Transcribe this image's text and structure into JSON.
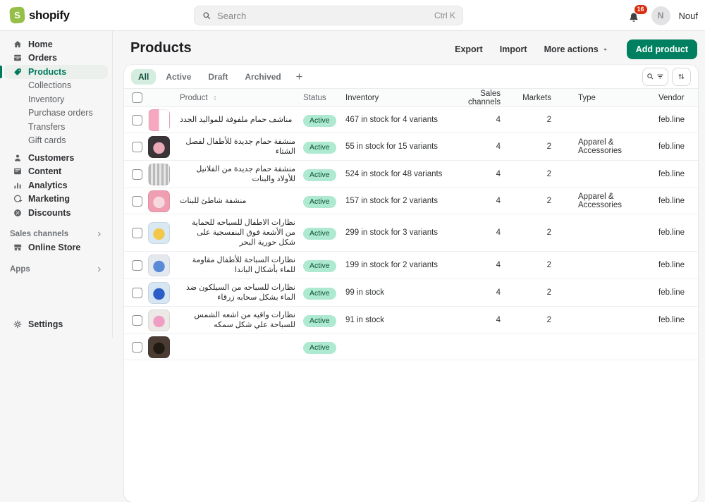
{
  "colors": {
    "brand_green": "#95bf47",
    "primary_button_green": "#008060",
    "active_nav_green": "#007a5c",
    "notification_red": "#d82c0d",
    "status_badge_bg": "#aee9d1",
    "status_badge_text": "#0c5132",
    "active_tab_bg": "#d5ece0"
  },
  "topbar": {
    "brand": "shopify",
    "search": {
      "placeholder": "Search",
      "shortcut": "Ctrl K"
    },
    "notifications_count": "16",
    "user": {
      "initial": "N",
      "name": "Nouf"
    }
  },
  "sidebar": {
    "items": [
      {
        "type": "item",
        "label": "Home",
        "icon": "home-icon"
      },
      {
        "type": "item",
        "label": "Orders",
        "icon": "orders-icon"
      },
      {
        "type": "item",
        "label": "Products",
        "icon": "products-icon",
        "active": true
      },
      {
        "type": "subitem",
        "label": "Collections"
      },
      {
        "type": "subitem",
        "label": "Inventory"
      },
      {
        "type": "subitem",
        "label": "Purchase orders"
      },
      {
        "type": "subitem",
        "label": "Transfers"
      },
      {
        "type": "subitem",
        "label": "Gift cards"
      },
      {
        "type": "item",
        "label": "Customers",
        "icon": "customers-icon",
        "gap": true
      },
      {
        "type": "item",
        "label": "Content",
        "icon": "content-icon"
      },
      {
        "type": "item",
        "label": "Analytics",
        "icon": "analytics-icon"
      },
      {
        "type": "item",
        "label": "Marketing",
        "icon": "marketing-icon"
      },
      {
        "type": "item",
        "label": "Discounts",
        "icon": "discounts-icon"
      },
      {
        "type": "section",
        "label": "Sales channels"
      },
      {
        "type": "item",
        "label": "Online Store",
        "icon": "store-icon"
      },
      {
        "type": "section",
        "label": "Apps"
      }
    ],
    "settings_label": "Settings"
  },
  "page": {
    "title": "Products",
    "actions": {
      "export": "Export",
      "import": "Import",
      "more_actions": "More actions",
      "add_product": "Add product"
    }
  },
  "tabs": [
    {
      "label": "All",
      "active": true
    },
    {
      "label": "Active"
    },
    {
      "label": "Draft"
    },
    {
      "label": "Archived"
    }
  ],
  "table": {
    "headers": {
      "product": "Product",
      "status": "Status",
      "inventory": "Inventory",
      "sales_channels": "Sales channels",
      "markets": "Markets",
      "type": "Type",
      "vendor": "Vendor"
    },
    "rows": [
      {
        "name": "مناشف حمام ملفوفة للمواليد الجدد",
        "status": "Active",
        "inventory": "467 in stock for 4 variants",
        "sales_channels": "4",
        "markets": "2",
        "type": "",
        "vendor": "feb.line",
        "thumb": {
          "pattern": "split",
          "base": "#ffffff",
          "accent": "#f5a8c0"
        }
      },
      {
        "name": "منشفة حمام جديدة للأطفال لفصل الشتاء",
        "status": "Active",
        "inventory": "55 in stock for 15 variants",
        "sales_channels": "4",
        "markets": "2",
        "type": "Apparel & Accessories",
        "vendor": "feb.line",
        "thumb": {
          "pattern": "blob",
          "base": "#3a3338",
          "accent": "#eaa9b8"
        }
      },
      {
        "name": "منشفة حمام جديدة من الفلانيل للأولاد والبنات",
        "status": "Active",
        "inventory": "524 in stock for 48 variants",
        "sales_channels": "4",
        "markets": "2",
        "type": "",
        "vendor": "feb.line",
        "thumb": {
          "pattern": "stripes",
          "base": "#b9b9bd",
          "accent": "#e8e6e4"
        }
      },
      {
        "name": "منشفة شاطئ للبنات",
        "status": "Active",
        "inventory": "157 in stock for 2 variants",
        "sales_channels": "4",
        "markets": "2",
        "type": "Apparel & Accessories",
        "vendor": "feb.line",
        "thumb": {
          "pattern": "blob",
          "base": "#f09fb2",
          "accent": "#f7d8de"
        }
      },
      {
        "name": "نظارات الاطفال للسباحه للحماية من الأشعة فوق البنفسجية على شكل حورية البحر",
        "status": "Active",
        "inventory": "299 in stock for 3 variants",
        "sales_channels": "4",
        "markets": "2",
        "type": "",
        "vendor": "feb.line",
        "thumb": {
          "pattern": "blob",
          "base": "#d9e9f3",
          "accent": "#f3c84a"
        }
      },
      {
        "name": "نظارات السباحة للأطفال مقاومة للماء بأشكال الباندا",
        "status": "Active",
        "inventory": "199 in stock for 2 variants",
        "sales_channels": "4",
        "markets": "2",
        "type": "",
        "vendor": "feb.line",
        "thumb": {
          "pattern": "blob",
          "base": "#e4e9f0",
          "accent": "#5b8ad6"
        }
      },
      {
        "name": "نظارات للسباحه من السيلكون ضد الماء بشكل سحابه زرقاء",
        "status": "Active",
        "inventory": "99 in stock",
        "sales_channels": "4",
        "markets": "2",
        "type": "",
        "vendor": "feb.line",
        "thumb": {
          "pattern": "blob",
          "base": "#d6e6f2",
          "accent": "#2b5fc7"
        }
      },
      {
        "name": "نظارات واقيه من اشعه الشمس للسباحة علي شكل سمكه",
        "status": "Active",
        "inventory": "91 in stock",
        "sales_channels": "4",
        "markets": "2",
        "type": "",
        "vendor": "feb.line",
        "thumb": {
          "pattern": "blob",
          "base": "#ece9e6",
          "accent": "#ef9ec4"
        }
      },
      {
        "name": "",
        "status": "Active",
        "inventory": "",
        "sales_channels": "",
        "markets": "",
        "type": "",
        "vendor": "",
        "thumb": {
          "pattern": "blob",
          "base": "#4a3c32",
          "accent": "#211a12"
        },
        "partial": true
      }
    ]
  }
}
